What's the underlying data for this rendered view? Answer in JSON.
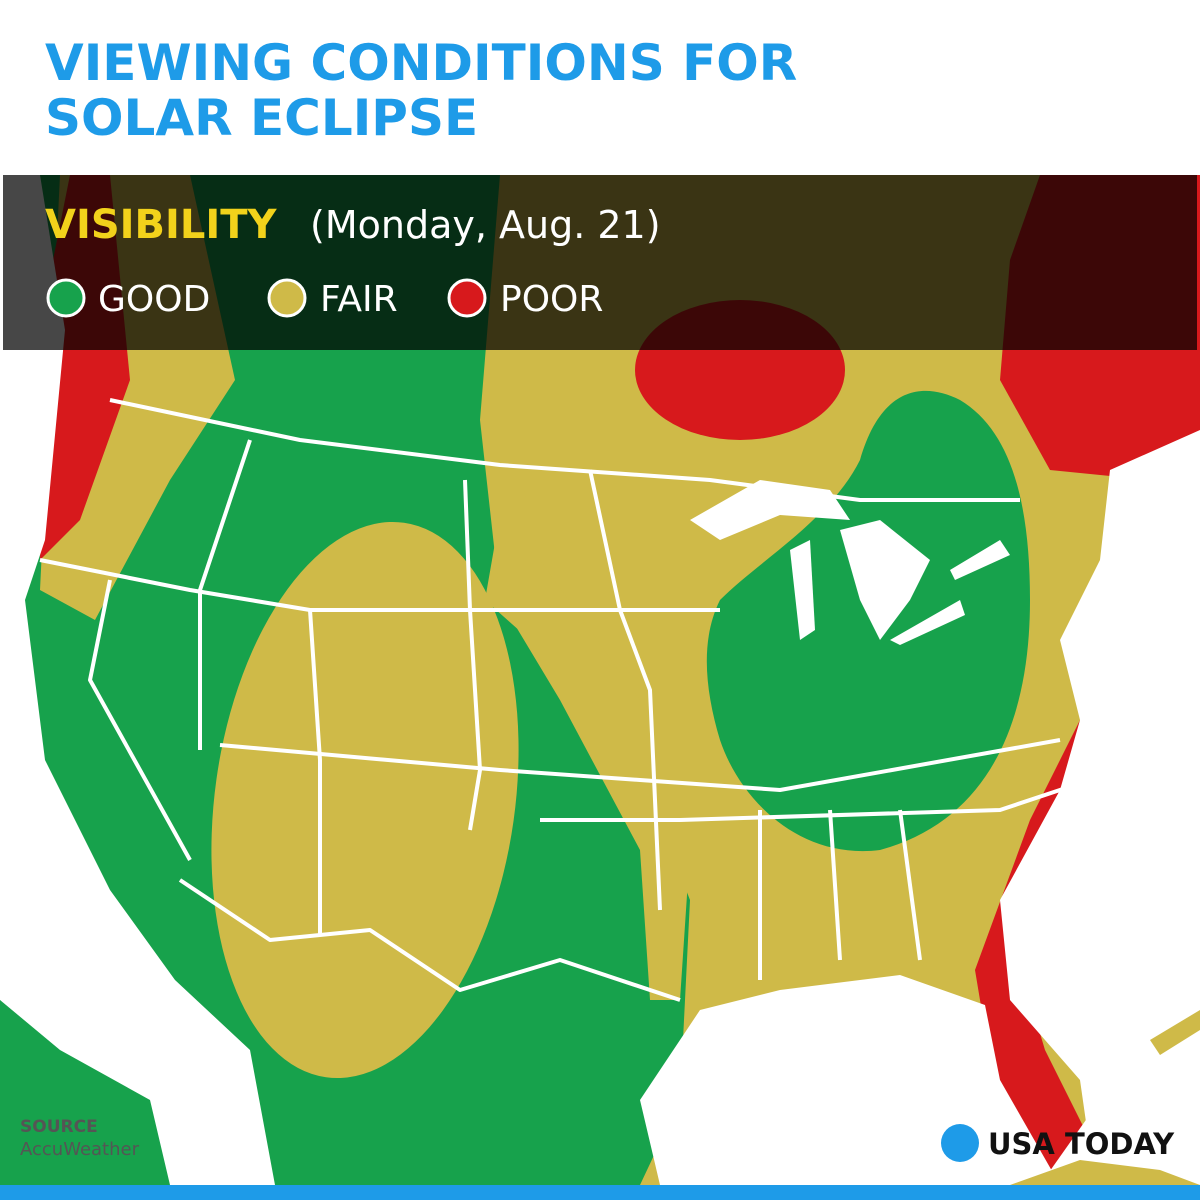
{
  "header": {
    "title": [
      "VIEWING CONDITIONS FOR",
      "SOLAR ECLIPSE"
    ]
  },
  "legend": {
    "label": "VISIBILITY",
    "date": "(Monday, Aug. 21)",
    "items": [
      "GOOD",
      "FAIR",
      "POOR"
    ]
  },
  "source": {
    "label": "SOURCE",
    "name": "AccuWeather"
  },
  "logo": "USA TODAY"
}
